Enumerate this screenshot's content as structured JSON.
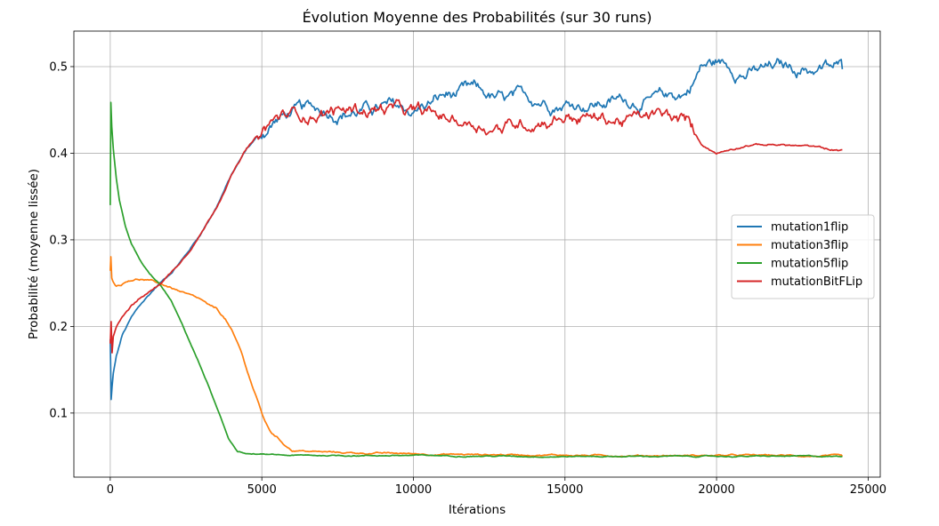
{
  "chart_data": {
    "type": "line",
    "title": "Évolution Moyenne des Probabilités (sur 30 runs)",
    "xlabel": "Itérations",
    "ylabel": "Probabilité (moyenne lissée)",
    "xlim": [
      -1200,
      25400
    ],
    "ylim": [
      0.026,
      0.541
    ],
    "xticks": [
      0,
      5000,
      10000,
      15000,
      20000,
      25000
    ],
    "xtick_labels": [
      "0",
      "5000",
      "10000",
      "15000",
      "20000",
      "25000"
    ],
    "yticks": [
      0.1,
      0.2,
      0.3,
      0.4,
      0.5
    ],
    "ytick_labels": [
      "0.1",
      "0.2",
      "0.3",
      "0.4",
      "0.5"
    ],
    "grid": true,
    "legend_position": "center-right",
    "series": [
      {
        "name": "mutation1flip",
        "color": "#1f77b4",
        "x": [
          0,
          30,
          60,
          100,
          200,
          400,
          700,
          1000,
          1500,
          2000,
          2500,
          3000,
          3500,
          4000,
          4500,
          5000,
          5500,
          6000,
          7000,
          8000,
          9000,
          10000,
          11000,
          12000,
          13000,
          14000,
          15000,
          16000,
          17000,
          18000,
          19000,
          19500,
          20000,
          20500,
          21000,
          21500,
          22000,
          23000,
          24000,
          24150
        ],
        "y": [
          0.185,
          0.115,
          0.13,
          0.145,
          0.165,
          0.19,
          0.21,
          0.225,
          0.245,
          0.262,
          0.283,
          0.308,
          0.338,
          0.375,
          0.405,
          0.425,
          0.44,
          0.447,
          0.45,
          0.449,
          0.452,
          0.448,
          0.465,
          0.47,
          0.458,
          0.462,
          0.46,
          0.458,
          0.462,
          0.46,
          0.47,
          0.5,
          0.505,
          0.5,
          0.493,
          0.495,
          0.498,
          0.498,
          0.498,
          0.497
        ]
      },
      {
        "name": "mutation3flip",
        "color": "#ff7f0e",
        "x": [
          0,
          20,
          50,
          100,
          200,
          400,
          600,
          800,
          1000,
          1500,
          2000,
          2500,
          3000,
          3300,
          3500,
          3800,
          4000,
          4300,
          4600,
          4900,
          5100,
          5300,
          5500,
          5700,
          6000,
          7000,
          8000,
          10000,
          12000,
          14000,
          16000,
          18000,
          20000,
          22000,
          24150
        ],
        "y": [
          0.265,
          0.282,
          0.258,
          0.252,
          0.248,
          0.25,
          0.254,
          0.255,
          0.255,
          0.251,
          0.245,
          0.237,
          0.23,
          0.222,
          0.22,
          0.208,
          0.195,
          0.172,
          0.14,
          0.11,
          0.09,
          0.078,
          0.072,
          0.065,
          0.057,
          0.055,
          0.054,
          0.053,
          0.052,
          0.052,
          0.051,
          0.051,
          0.051,
          0.051,
          0.05
        ]
      },
      {
        "name": "mutation5flip",
        "color": "#2ca02c",
        "x": [
          0,
          20,
          50,
          100,
          200,
          300,
          500,
          700,
          1000,
          1300,
          1600,
          2000,
          2400,
          2800,
          3200,
          3600,
          3900,
          4200,
          4500,
          5000,
          6000,
          8000,
          10000,
          14000,
          18000,
          22000,
          24150
        ],
        "y": [
          0.34,
          0.458,
          0.43,
          0.405,
          0.37,
          0.345,
          0.315,
          0.295,
          0.275,
          0.26,
          0.25,
          0.23,
          0.2,
          0.168,
          0.135,
          0.098,
          0.07,
          0.056,
          0.053,
          0.052,
          0.051,
          0.051,
          0.051,
          0.05,
          0.05,
          0.05,
          0.05
        ]
      },
      {
        "name": "mutationBitFLip",
        "color": "#d62728",
        "x": [
          0,
          30,
          60,
          100,
          200,
          400,
          700,
          1000,
          1500,
          2000,
          2500,
          3000,
          3500,
          4000,
          4500,
          5000,
          5500,
          6000,
          7000,
          8000,
          9000,
          10000,
          11000,
          12000,
          13000,
          14000,
          15000,
          16000,
          17000,
          18000,
          19000,
          19500,
          20000,
          20500,
          21000,
          21500,
          22000,
          23000,
          24000,
          24150
        ],
        "y": [
          0.18,
          0.205,
          0.17,
          0.19,
          0.2,
          0.213,
          0.225,
          0.233,
          0.245,
          0.262,
          0.283,
          0.308,
          0.338,
          0.375,
          0.405,
          0.425,
          0.44,
          0.445,
          0.448,
          0.45,
          0.452,
          0.445,
          0.44,
          0.435,
          0.43,
          0.438,
          0.445,
          0.44,
          0.438,
          0.442,
          0.435,
          0.41,
          0.4,
          0.405,
          0.41,
          0.41,
          0.41,
          0.408,
          0.403,
          0.404
        ]
      }
    ]
  }
}
